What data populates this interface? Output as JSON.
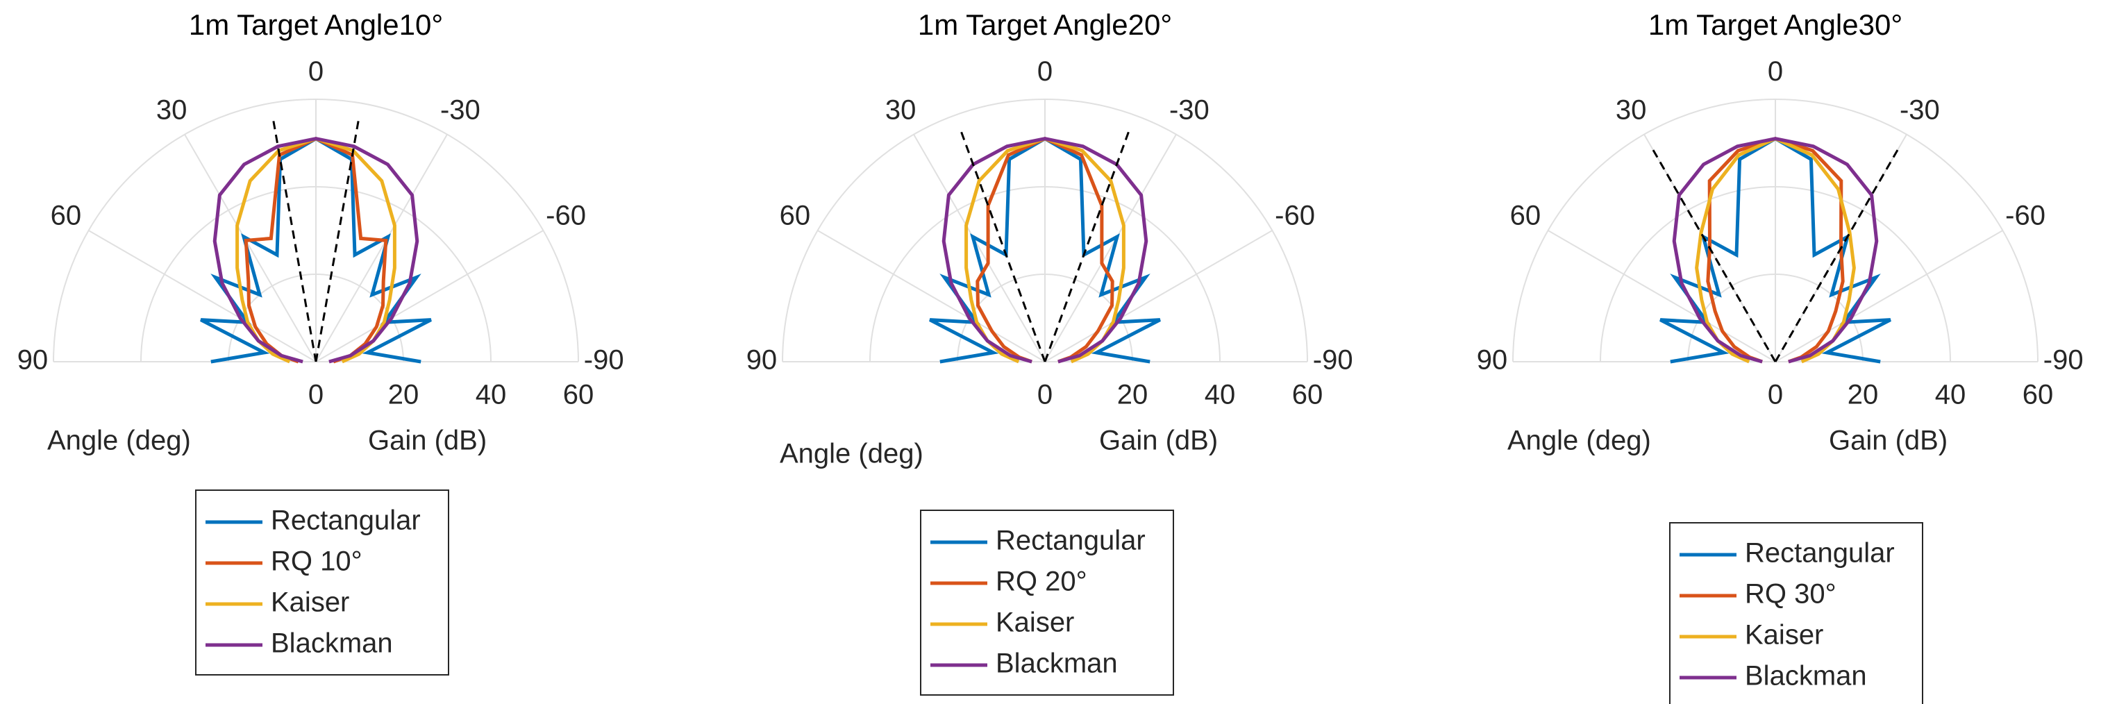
{
  "chart_data": [
    {
      "type": "polar",
      "title": "1m Target Angle10°",
      "theta_label": "Angle (deg)",
      "r_label": "Gain (dB)",
      "rlim": [
        0,
        60
      ],
      "rticks": [
        0,
        20,
        40,
        60
      ],
      "thetaticks": [
        90,
        60,
        30,
        0,
        -30,
        -60,
        -90
      ],
      "target_lines": [
        10,
        -10
      ],
      "theta": [
        -90,
        -80,
        -70,
        -60,
        -50,
        -40,
        -30,
        -20,
        -10,
        0,
        10,
        20,
        30,
        40,
        50,
        60,
        70,
        80,
        90
      ],
      "series": [
        {
          "name": "Rectangular",
          "color": "#0072bd",
          "values": [
            24,
            12,
            28,
            18,
            30,
            20,
            33,
            26,
            47,
            51,
            47,
            26,
            33,
            20,
            30,
            18,
            28,
            12,
            24
          ]
        },
        {
          "name": "RQ 10°",
          "color": "#d95319",
          "values": [
            4,
            8,
            12,
            16,
            20,
            24,
            32,
            30,
            48,
            51,
            48,
            30,
            32,
            24,
            20,
            16,
            12,
            8,
            4
          ]
        },
        {
          "name": "Kaiser",
          "color": "#edb120",
          "values": [
            6,
            10,
            14,
            18,
            22,
            28,
            36,
            44,
            49,
            51,
            49,
            44,
            36,
            28,
            22,
            18,
            14,
            10,
            6
          ]
        },
        {
          "name": "Blackman",
          "color": "#7e2f8e",
          "values": [
            3,
            8,
            14,
            20,
            28,
            36,
            44,
            48,
            50,
            51,
            50,
            48,
            44,
            36,
            28,
            20,
            14,
            8,
            3
          ]
        }
      ]
    },
    {
      "type": "polar",
      "title": "1m Target Angle20°",
      "theta_label": "Angle (deg)",
      "r_label": "Gain (dB)",
      "rlim": [
        0,
        60
      ],
      "rticks": [
        0,
        20,
        40,
        60
      ],
      "thetaticks": [
        90,
        60,
        30,
        0,
        -30,
        -60,
        -90
      ],
      "target_lines": [
        20,
        -20
      ],
      "theta": [
        -90,
        -80,
        -70,
        -60,
        -50,
        -40,
        -30,
        -20,
        -10,
        0,
        10,
        20,
        30,
        40,
        50,
        60,
        70,
        80,
        90
      ],
      "series": [
        {
          "name": "Rectangular",
          "color": "#0072bd",
          "values": [
            24,
            12,
            28,
            18,
            30,
            20,
            33,
            26,
            47,
            51,
            47,
            26,
            33,
            20,
            30,
            18,
            28,
            12,
            24
          ]
        },
        {
          "name": "RQ 20°",
          "color": "#d95319",
          "values": [
            3,
            6,
            10,
            14,
            20,
            24,
            26,
            38,
            48,
            51,
            48,
            38,
            26,
            24,
            20,
            14,
            10,
            6,
            3
          ]
        },
        {
          "name": "Kaiser",
          "color": "#edb120",
          "values": [
            6,
            10,
            14,
            18,
            22,
            28,
            36,
            44,
            49,
            51,
            49,
            44,
            36,
            28,
            22,
            18,
            14,
            10,
            6
          ]
        },
        {
          "name": "Blackman",
          "color": "#7e2f8e",
          "values": [
            3,
            8,
            14,
            20,
            28,
            36,
            44,
            48,
            50,
            51,
            50,
            48,
            44,
            36,
            28,
            20,
            14,
            8,
            3
          ]
        }
      ]
    },
    {
      "type": "polar",
      "title": "1m Target Angle30°",
      "theta_label": "Angle (deg)",
      "r_label": "Gain (dB)",
      "rlim": [
        0,
        60
      ],
      "rticks": [
        0,
        20,
        40,
        60
      ],
      "thetaticks": [
        90,
        60,
        30,
        0,
        -30,
        -60,
        -90
      ],
      "target_lines": [
        30,
        -30
      ],
      "theta": [
        -90,
        -80,
        -70,
        -60,
        -50,
        -40,
        -30,
        -20,
        -10,
        0,
        10,
        20,
        30,
        40,
        50,
        60,
        70,
        80,
        90
      ],
      "series": [
        {
          "name": "Rectangular",
          "color": "#0072bd",
          "values": [
            24,
            12,
            28,
            18,
            30,
            20,
            33,
            26,
            47,
            51,
            47,
            26,
            33,
            20,
            30,
            18,
            28,
            12,
            24
          ]
        },
        {
          "name": "RQ 30°",
          "color": "#d95319",
          "values": [
            3,
            6,
            10,
            14,
            18,
            24,
            30,
            44,
            49,
            51,
            49,
            44,
            30,
            24,
            18,
            14,
            10,
            6,
            3
          ]
        },
        {
          "name": "Kaiser",
          "color": "#edb120",
          "values": [
            6,
            10,
            14,
            18,
            22,
            28,
            34,
            42,
            48,
            51,
            48,
            42,
            34,
            28,
            22,
            18,
            14,
            10,
            6
          ]
        },
        {
          "name": "Blackman",
          "color": "#7e2f8e",
          "values": [
            3,
            8,
            14,
            20,
            28,
            36,
            44,
            48,
            50,
            51,
            50,
            48,
            44,
            36,
            28,
            20,
            14,
            8,
            3
          ]
        }
      ]
    }
  ]
}
